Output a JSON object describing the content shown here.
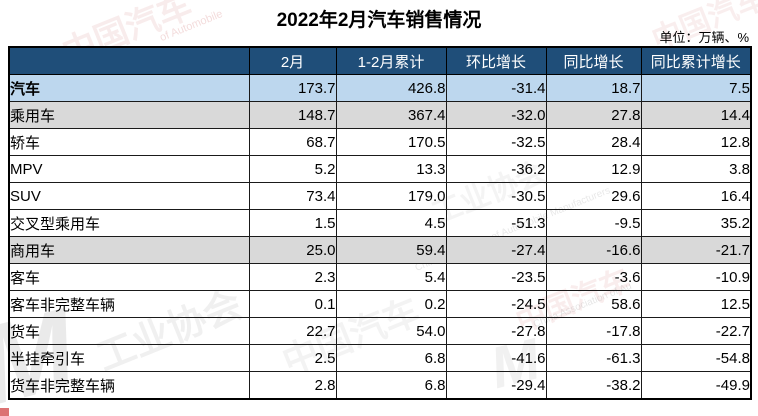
{
  "title": "2022年2月汽车销售情况",
  "unit_note": "单位：万辆、%",
  "colors": {
    "header_bg": "#1f4e79",
    "header_text": "#ffffff",
    "row_highlight_blue": "#bdd7ee",
    "row_highlight_gray": "#d9d9d9",
    "border": "#000000",
    "watermark_red": "#d98c8c",
    "watermark_gray": "#9a9a9a"
  },
  "watermark": {
    "org_cn": "中国汽车工业协会",
    "org_en": "China Association of Automobile Manufacturers",
    "frag_cn_1": "中国汽车",
    "frag_cn_2": "工业协会",
    "frag_en_1": "of Automobile",
    "frag_en_2": "China Association of Au",
    "logo_glyph": "M"
  },
  "chart_data": {
    "type": "table",
    "title": "2022年2月汽车销售情况",
    "unit": "万辆、%",
    "columns": [
      "",
      "2月",
      "1-2月累计",
      "环比增长",
      "同比增长",
      "同比累计增长"
    ],
    "rows": [
      {
        "label": "汽车",
        "indent": 0,
        "highlight": "blue",
        "values": [
          "173.7",
          "426.8",
          "-31.4",
          "18.7",
          "7.5"
        ]
      },
      {
        "label": "乘用车",
        "indent": 1,
        "highlight": "gray",
        "values": [
          "148.7",
          "367.4",
          "-32.0",
          "27.8",
          "14.4"
        ]
      },
      {
        "label": "轿车",
        "indent": 2,
        "highlight": "none",
        "values": [
          "68.7",
          "170.5",
          "-32.5",
          "28.4",
          "12.8"
        ]
      },
      {
        "label": "MPV",
        "indent": 2,
        "highlight": "none",
        "values": [
          "5.2",
          "13.3",
          "-36.2",
          "12.9",
          "3.8"
        ]
      },
      {
        "label": "SUV",
        "indent": 2,
        "highlight": "none",
        "values": [
          "73.4",
          "179.0",
          "-30.5",
          "29.6",
          "16.4"
        ]
      },
      {
        "label": "交叉型乘用车",
        "indent": 2,
        "highlight": "none",
        "values": [
          "1.5",
          "4.5",
          "-51.3",
          "-9.5",
          "35.2"
        ]
      },
      {
        "label": "商用车",
        "indent": 1,
        "highlight": "gray",
        "values": [
          "25.0",
          "59.4",
          "-27.4",
          "-16.6",
          "-21.7"
        ]
      },
      {
        "label": "客车",
        "indent": 2,
        "highlight": "none",
        "values": [
          "2.3",
          "5.4",
          "-23.5",
          "-3.6",
          "-10.9"
        ]
      },
      {
        "label": "客车非完整车辆",
        "indent": 3,
        "highlight": "none",
        "values": [
          "0.1",
          "0.2",
          "-24.5",
          "58.6",
          "12.5"
        ]
      },
      {
        "label": "货车",
        "indent": 2,
        "highlight": "none",
        "values": [
          "22.7",
          "54.0",
          "-27.8",
          "-17.8",
          "-22.7"
        ]
      },
      {
        "label": "半挂牵引车",
        "indent": 3,
        "highlight": "none",
        "values": [
          "2.5",
          "6.8",
          "-41.6",
          "-61.3",
          "-54.8"
        ]
      },
      {
        "label": "货车非完整车辆",
        "indent": 3,
        "highlight": "none",
        "values": [
          "2.8",
          "6.8",
          "-29.4",
          "-38.2",
          "-49.9"
        ]
      }
    ]
  }
}
